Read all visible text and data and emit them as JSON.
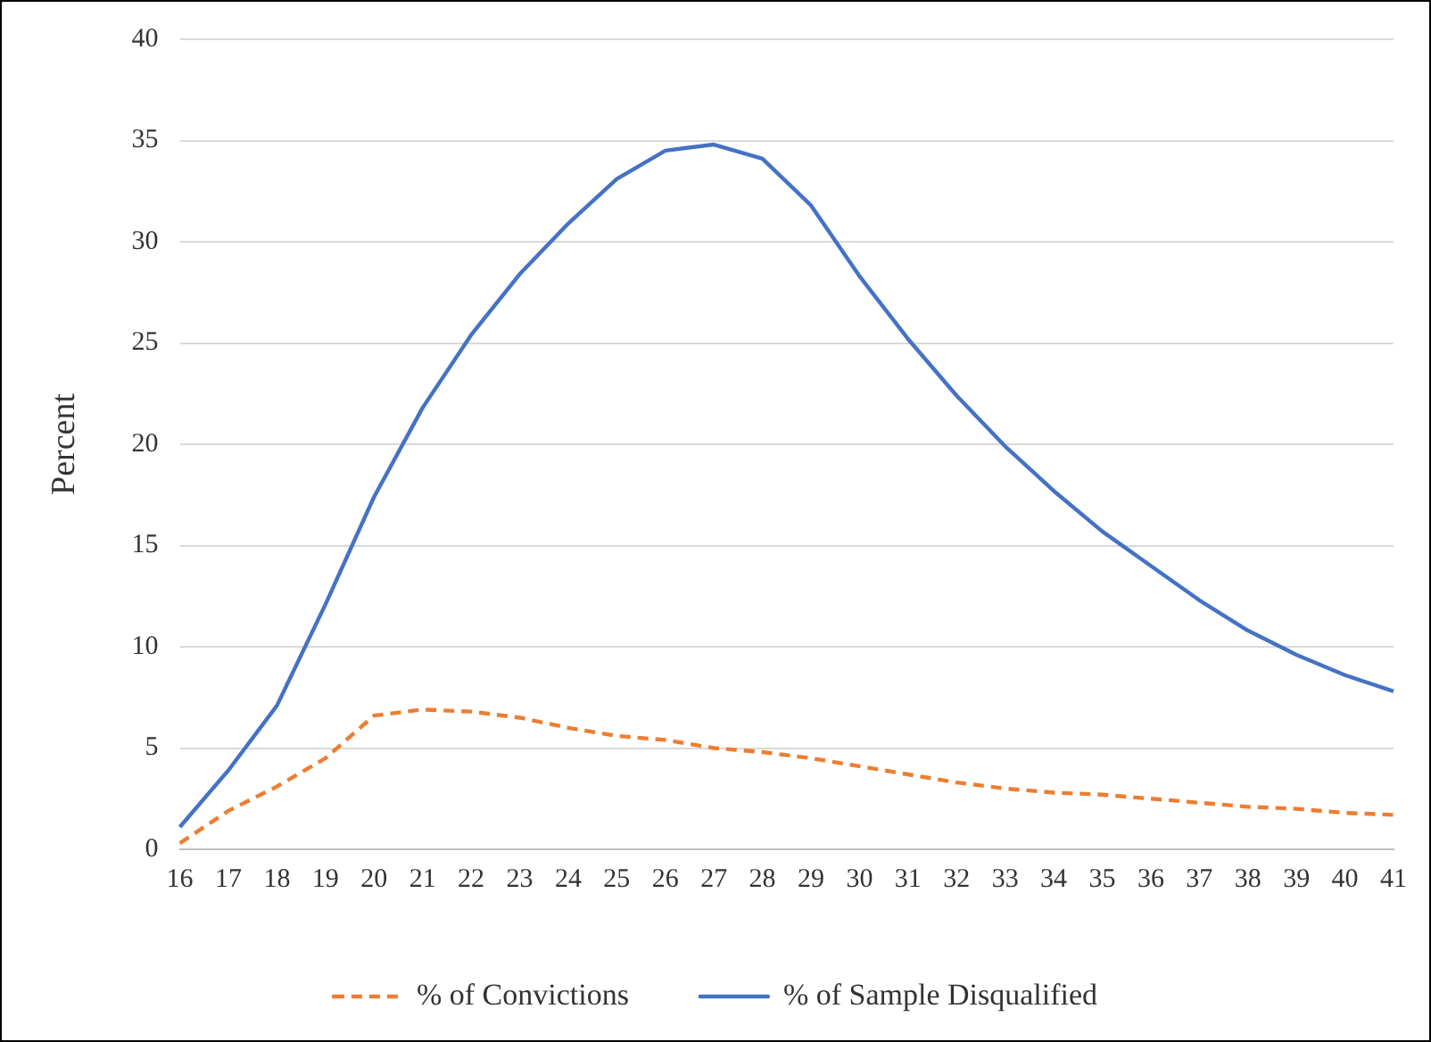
{
  "chart_data": {
    "type": "line",
    "ylabel": "Percent",
    "categories": [
      "16",
      "17",
      "18",
      "19",
      "20",
      "21",
      "22",
      "23",
      "24",
      "25",
      "26",
      "27",
      "28",
      "29",
      "30",
      "31",
      "32",
      "33",
      "34",
      "35",
      "36",
      "37",
      "38",
      "39",
      "40",
      "41"
    ],
    "series": [
      {
        "name": "% of Convictions",
        "color": "#ed7d31",
        "line_style": "dashed",
        "values": [
          0.3,
          1.9,
          3.1,
          4.5,
          6.6,
          6.9,
          6.8,
          6.5,
          6.0,
          5.6,
          5.4,
          5.0,
          4.8,
          4.5,
          4.1,
          3.7,
          3.3,
          3.0,
          2.8,
          2.7,
          2.5,
          2.3,
          2.1,
          2.0,
          1.8,
          1.7
        ]
      },
      {
        "name": "% of Sample Disqualified",
        "color": "#4472c4",
        "line_style": "solid",
        "values": [
          1.1,
          3.9,
          7.1,
          12.1,
          17.4,
          21.8,
          25.4,
          28.4,
          30.9,
          33.1,
          34.5,
          34.8,
          34.1,
          31.8,
          28.3,
          25.2,
          22.4,
          19.9,
          17.7,
          15.7,
          14.0,
          12.3,
          10.8,
          9.6,
          8.6,
          7.8
        ]
      }
    ],
    "ylim": [
      0,
      40
    ],
    "yticks": [
      0,
      5,
      10,
      15,
      20,
      25,
      30,
      35,
      40
    ],
    "grid": "y",
    "legend": "bottom",
    "marker": "none"
  }
}
